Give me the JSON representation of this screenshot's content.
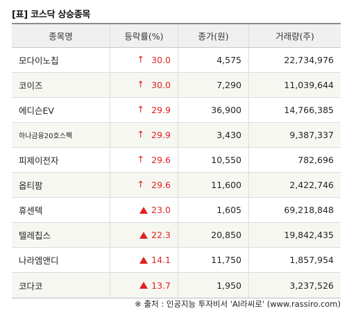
{
  "title": "[표] 코스닥 상승종목",
  "headers": [
    "종목명",
    "등락률(%)",
    "종가(원)",
    "거래량(주)"
  ],
  "rows": [
    {
      "name": "모다이노칩",
      "change": "30.0",
      "marker": "arrow",
      "close": "4,575",
      "volume": "22,734,976"
    },
    {
      "name": "코이즈",
      "change": "30.0",
      "marker": "arrow",
      "close": "7,290",
      "volume": "11,039,644"
    },
    {
      "name": "에디슨EV",
      "change": "29.9",
      "marker": "arrow",
      "close": "36,900",
      "volume": "14,766,385"
    },
    {
      "name": "하나금융20호스팩",
      "change": "29.9",
      "marker": "arrow",
      "close": "3,430",
      "volume": "9,387,337"
    },
    {
      "name": "피제이전자",
      "change": "29.6",
      "marker": "arrow",
      "close": "10,550",
      "volume": "782,696"
    },
    {
      "name": "옵티팜",
      "change": "29.6",
      "marker": "arrow",
      "close": "11,600",
      "volume": "2,422,746"
    },
    {
      "name": "휴센텍",
      "change": "23.0",
      "marker": "triangle",
      "close": "1,605",
      "volume": "69,218,848"
    },
    {
      "name": "텔레칩스",
      "change": "22.3",
      "marker": "triangle",
      "close": "20,850",
      "volume": "19,842,435"
    },
    {
      "name": "나라엠앤디",
      "change": "14.1",
      "marker": "triangle",
      "close": "11,750",
      "volume": "1,857,954"
    },
    {
      "name": "코다코",
      "change": "13.7",
      "marker": "triangle",
      "close": "1,950",
      "volume": "3,237,526"
    }
  ],
  "source": "※ 출처 : 인공지능 투자비서 'AI라씨로' (www.rassiro.com)",
  "colors": {
    "up": "#e02020",
    "header_bg": "#f0f0f0",
    "alt_row_bg": "#f7f7f2"
  }
}
